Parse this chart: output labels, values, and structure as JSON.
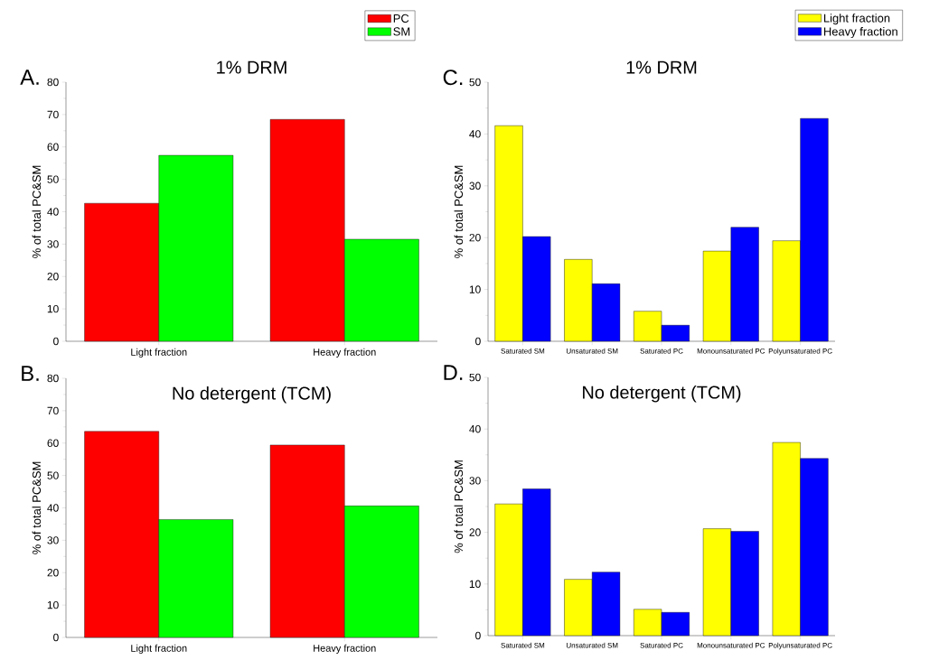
{
  "chart_data": [
    {
      "type": "bar",
      "title": "1% DRM",
      "ylabel": "% of total PC&SM",
      "annotations": [
        "A."
      ],
      "categories": [
        "Light fraction",
        "Heavy fraction"
      ],
      "ylim": [
        0,
        80
      ],
      "yticks": [
        0,
        10,
        20,
        30,
        40,
        50,
        60,
        70,
        80
      ],
      "legend": "top right",
      "series": [
        {
          "name": "PC",
          "color": "#ff0000",
          "values": [
            42.6,
            68.5
          ]
        },
        {
          "name": "SM",
          "color": "#00ff00",
          "values": [
            57.4,
            31.5
          ]
        }
      ]
    },
    {
      "type": "bar",
      "title": "1% DRM",
      "ylabel": "% of total PC&SM",
      "annotations": [
        "C."
      ],
      "categories": [
        "Saturated SM",
        "Unsaturated SM",
        "Saturated PC",
        "Monounsaturated PC",
        "Polyunsaturated PC"
      ],
      "ylim": [
        0,
        50
      ],
      "yticks": [
        0,
        10,
        20,
        30,
        40,
        50
      ],
      "legend": "top right",
      "series": [
        {
          "name": "Light fraction",
          "color": "#ffff00",
          "values": [
            41.6,
            15.8,
            5.8,
            17.4,
            19.4
          ]
        },
        {
          "name": "Heavy fraction",
          "color": "#0000ff",
          "values": [
            20.2,
            11.1,
            3.1,
            22.0,
            43.0
          ]
        }
      ]
    },
    {
      "type": "bar",
      "title": "No detergent (TCM)",
      "ylabel": "% of total PC&SM",
      "annotations": [
        "B."
      ],
      "categories": [
        "Light fraction",
        "Heavy fraction"
      ],
      "ylim": [
        0,
        80
      ],
      "yticks": [
        0,
        10,
        20,
        30,
        40,
        50,
        60,
        70,
        80
      ],
      "series": [
        {
          "color": "#ff0000",
          "values": [
            63.6,
            59.4
          ]
        },
        {
          "color": "#00ff00",
          "values": [
            36.4,
            40.6
          ]
        }
      ]
    },
    {
      "type": "bar",
      "title": "No detergent (TCM)",
      "ylabel": "% of total PC&SM",
      "annotations": [
        "D."
      ],
      "categories": [
        "Saturated SM",
        "Unsaturated SM",
        "Saturated PC",
        "Monounsaturated PC",
        "Polyunsaturated PC"
      ],
      "ylim": [
        0,
        50
      ],
      "yticks": [
        0,
        10,
        20,
        30,
        40,
        50
      ],
      "series": [
        {
          "color": "#ffff00",
          "values": [
            25.5,
            10.9,
            5.1,
            20.7,
            37.4
          ]
        },
        {
          "color": "#0000ff",
          "values": [
            28.4,
            12.3,
            4.5,
            20.2,
            34.3
          ]
        }
      ]
    }
  ]
}
